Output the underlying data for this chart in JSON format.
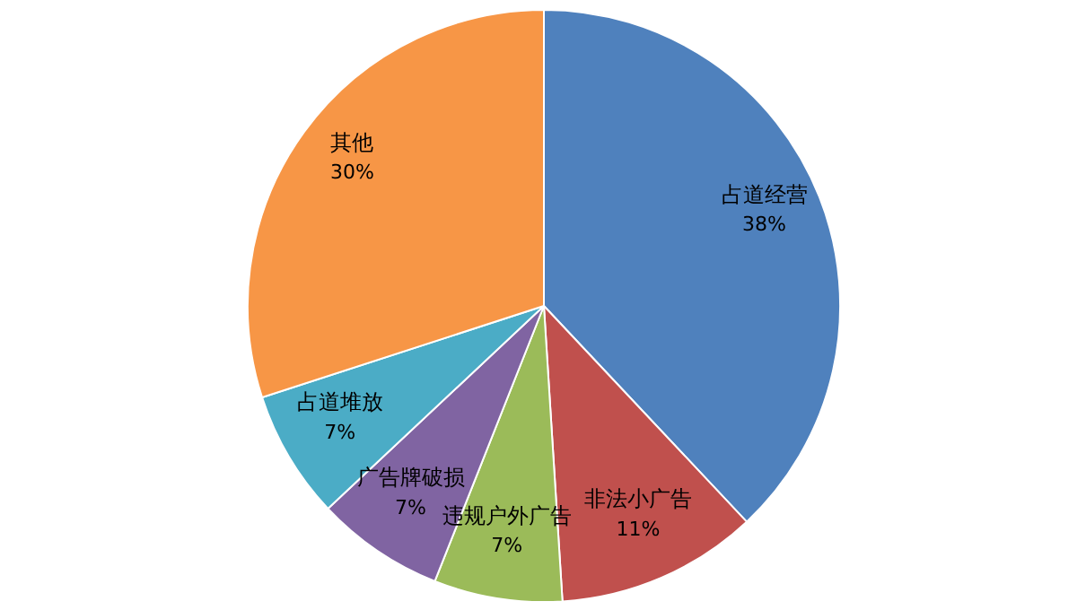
{
  "chart_data": {
    "type": "pie",
    "categories": [
      "占道经营",
      "非法小广告",
      "违规户外广告",
      "广告牌破损",
      "占道堆放",
      "其他"
    ],
    "values": [
      38,
      11,
      7,
      7,
      7,
      30
    ],
    "value_labels": [
      "38%",
      "11%",
      "7%",
      "7%",
      "7%",
      "30%"
    ],
    "colors": [
      "#4f81bd",
      "#c0504d",
      "#9bbb59",
      "#8064a2",
      "#4bacc6",
      "#f79646"
    ]
  }
}
